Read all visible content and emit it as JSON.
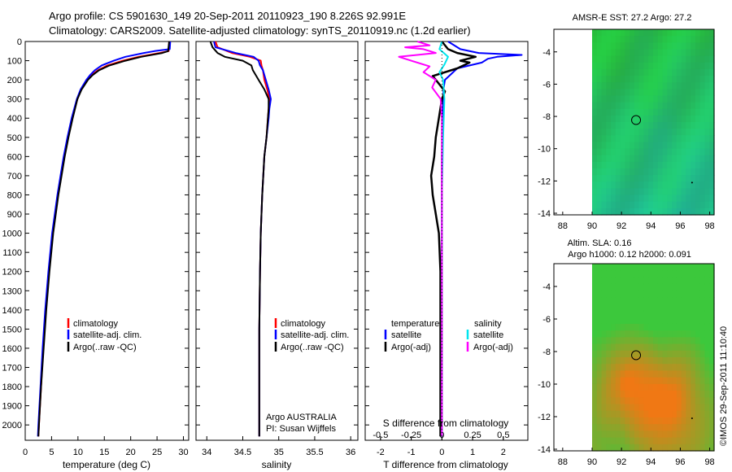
{
  "header": {
    "line1": "Argo profile: CS 5901630_149 20-Sep-2011 20110923_190 8.226S 92.991E",
    "line2": "Climatology: CARS2009. Satellite-adjusted climatology: synTS_20110919.nc (1.2d earlier)"
  },
  "colors": {
    "climatology": "#ff0000",
    "satellite": "#0000ff",
    "argo": "#000000",
    "sal_satellite": "#00e5ee",
    "sal_argo": "#ff00ff"
  },
  "depth_ticks": [
    "0",
    "100",
    "200",
    "300",
    "400",
    "500",
    "600",
    "700",
    "800",
    "900",
    "1000",
    "1100",
    "1200",
    "1300",
    "1400",
    "1500",
    "1600",
    "1700",
    "1800",
    "1900",
    "2000"
  ],
  "panel_temperature": {
    "xlabel": "temperature (deg C)",
    "xticks": [
      "0",
      "5",
      "10",
      "15",
      "20",
      "25",
      "30"
    ],
    "legend": [
      "climatology",
      "satellite-adj. clim.",
      "Argo(..raw -QC)"
    ]
  },
  "panel_salinity": {
    "xlabel": "salinity",
    "xticks": [
      "34",
      "34.5",
      "35",
      "35.5",
      "36"
    ],
    "legend": [
      "climatology",
      "satellite-adj. clim.",
      "Argo(..raw -QC)"
    ],
    "note1": "Argo AUSTRALIA",
    "note2": "PI: Susan Wijffels"
  },
  "panel_difference": {
    "xlabel_bottom": "T difference from climatology",
    "xticks_bottom": [
      "-2",
      "-1",
      "0",
      "1",
      "2"
    ],
    "xlabel_top": "S difference from climatology",
    "xticks_top": [
      "-0.5",
      "-0.25",
      "0",
      "0.25",
      "0.5"
    ],
    "legend_temp_title": "temperature",
    "legend_temp": [
      "satellite",
      "Argo(-adj)"
    ],
    "legend_sal_title": "salinity",
    "legend_sal": [
      "satellite",
      "Argo(-adj)"
    ]
  },
  "map_sst": {
    "title": "AMSR-E SST: 27.2 Argo: 27.2",
    "xticks": [
      "88",
      "90",
      "92",
      "94",
      "96",
      "98"
    ],
    "yticks": [
      "-4",
      "-6",
      "-8",
      "-10",
      "-12",
      "-14"
    ]
  },
  "map_sla": {
    "title1": "Altim. SLA: 0.16",
    "title2": "Argo h1000: 0.12 h2000: 0.091",
    "xticks": [
      "88",
      "90",
      "92",
      "94",
      "96",
      "98"
    ],
    "yticks": [
      "-4",
      "-6",
      "-8",
      "-10",
      "-12",
      "-14"
    ]
  },
  "side_text": "©IMOS 29-Sep-2011 11:10:40",
  "chart_data": [
    {
      "type": "line",
      "xlabel": "temperature (deg C)",
      "ylabel": "",
      "xlim": [
        0,
        31
      ],
      "ylim": [
        2080,
        0
      ],
      "series": [
        {
          "name": "climatology",
          "depth": [
            0,
            50,
            60,
            80,
            100,
            125,
            150,
            175,
            200,
            250,
            300,
            400,
            500,
            600,
            700,
            800,
            1000,
            1200,
            1400,
            1600,
            1800,
            2000,
            2060
          ],
          "values": [
            27.3,
            27.2,
            25.5,
            21.5,
            18.5,
            15.6,
            13.8,
            12.6,
            11.8,
            10.6,
            9.9,
            8.9,
            8.1,
            7.4,
            6.8,
            6.2,
            5.2,
            4.5,
            3.9,
            3.4,
            3.0,
            2.6,
            2.5
          ]
        },
        {
          "name": "satellite-adj. clim.",
          "depth": [
            0,
            40,
            50,
            60,
            80,
            100,
            125,
            150,
            175,
            200,
            250,
            300,
            400,
            500,
            600,
            700,
            800,
            1000,
            1200,
            1400,
            1600,
            1800,
            2000,
            2060
          ],
          "values": [
            27.5,
            27.4,
            24.5,
            22.5,
            19.0,
            16.8,
            14.5,
            13.2,
            12.3,
            11.6,
            10.5,
            9.8,
            8.8,
            8.0,
            7.3,
            6.7,
            6.1,
            5.1,
            4.4,
            3.8,
            3.3,
            2.9,
            2.5,
            2.4
          ]
        },
        {
          "name": "Argo(..raw -QC)",
          "depth": [
            0,
            50,
            60,
            80,
            100,
            125,
            150,
            175,
            200,
            250,
            300,
            400,
            500,
            600,
            700,
            800,
            1000,
            1200,
            1400,
            1600,
            1800,
            2000,
            2060
          ],
          "values": [
            27.3,
            27.1,
            26.0,
            22.0,
            19.0,
            16.0,
            14.0,
            12.8,
            11.9,
            10.7,
            9.9,
            9.0,
            8.2,
            7.5,
            6.9,
            6.3,
            5.3,
            4.6,
            4.0,
            3.5,
            3.0,
            2.6,
            2.5
          ]
        }
      ]
    },
    {
      "type": "line",
      "xlabel": "salinity",
      "ylabel": "",
      "xlim": [
        33.85,
        36.1
      ],
      "ylim": [
        2080,
        0
      ],
      "series": [
        {
          "name": "climatology",
          "depth": [
            0,
            30,
            60,
            80,
            100,
            125,
            150,
            200,
            250,
            300,
            350,
            400,
            500,
            600,
            800,
            1000,
            1200,
            1500,
            1800,
            2060
          ],
          "values": [
            34.12,
            34.15,
            34.35,
            34.6,
            34.75,
            34.76,
            34.78,
            34.8,
            34.84,
            34.87,
            34.86,
            34.85,
            34.83,
            34.8,
            34.77,
            34.75,
            34.74,
            34.73,
            34.73,
            34.73
          ]
        },
        {
          "name": "satellite-adj. clim.",
          "depth": [
            0,
            30,
            60,
            80,
            100,
            125,
            150,
            200,
            250,
            300,
            350,
            400,
            500,
            600,
            800,
            1000,
            1200,
            1500,
            1800,
            2060
          ],
          "values": [
            34.1,
            34.12,
            34.4,
            34.65,
            34.72,
            34.74,
            34.78,
            34.82,
            34.86,
            34.89,
            34.87,
            34.86,
            34.83,
            34.8,
            34.77,
            34.75,
            34.74,
            34.73,
            34.73,
            34.73
          ]
        },
        {
          "name": "Argo(..raw -QC)",
          "depth": [
            0,
            30,
            60,
            80,
            100,
            125,
            150,
            200,
            250,
            300,
            350,
            400,
            500,
            600,
            800,
            1000,
            1200,
            1500,
            1800,
            2060
          ],
          "values": [
            34.05,
            34.08,
            34.15,
            34.25,
            34.5,
            34.62,
            34.64,
            34.72,
            34.8,
            34.86,
            34.86,
            34.85,
            34.83,
            34.8,
            34.77,
            34.75,
            34.74,
            34.73,
            34.73,
            34.73
          ]
        }
      ]
    },
    {
      "type": "line",
      "xlabel": "T difference from climatology",
      "ylabel": "",
      "xlim": [
        -2.5,
        2.8
      ],
      "ylim": [
        2080,
        0
      ],
      "series": [
        {
          "name": "satellite",
          "depth": [
            0,
            40,
            60,
            70,
            80,
            90,
            110,
            140,
            170,
            200,
            250,
            300,
            400,
            600,
            800,
            1000,
            1500,
            2060
          ],
          "values": [
            0.2,
            0.6,
            1.2,
            2.6,
            1.8,
            1.5,
            1.3,
            0.5,
            0.3,
            0.1,
            0.05,
            0.05,
            0.02,
            0.0,
            0.0,
            0.0,
            0.0,
            0.0
          ]
        },
        {
          "name": "Argo(-adj)",
          "depth": [
            0,
            40,
            60,
            80,
            100,
            110,
            140,
            180,
            220,
            260,
            300,
            400,
            500,
            600,
            700,
            800,
            900,
            1000,
            1200,
            1500,
            1800,
            2060
          ],
          "values": [
            0.0,
            0.2,
            0.5,
            1.1,
            0.6,
            0.9,
            0.5,
            -0.3,
            -0.1,
            0.1,
            0.0,
            -0.1,
            -0.2,
            -0.25,
            -0.35,
            -0.3,
            -0.2,
            -0.1,
            -0.05,
            -0.05,
            -0.05,
            -0.05
          ]
        }
      ]
    },
    {
      "type": "line",
      "xlabel": "S difference from climatology",
      "ylabel": "",
      "xlim": [
        -0.625,
        0.7
      ],
      "ylim": [
        2080,
        0
      ],
      "series": [
        {
          "name": "satellite",
          "depth": [
            0,
            40,
            80,
            120,
            160,
            200,
            300,
            500,
            800,
            1000,
            1500,
            2060
          ],
          "values": [
            0.0,
            -0.02,
            0.05,
            0.02,
            -0.02,
            0.01,
            0.02,
            0.01,
            0.0,
            0.0,
            0.0,
            0.0
          ]
        },
        {
          "name": "Argo(-adj)",
          "depth": [
            0,
            20,
            30,
            40,
            60,
            80,
            100,
            130,
            160,
            200,
            240,
            300,
            400,
            800,
            1200,
            2060
          ],
          "values": [
            -0.2,
            -0.1,
            -0.3,
            -0.15,
            -0.05,
            -0.35,
            -0.25,
            -0.1,
            -0.15,
            -0.05,
            -0.08,
            -0.01,
            0.0,
            0.0,
            0.0,
            0.0
          ]
        }
      ]
    }
  ]
}
